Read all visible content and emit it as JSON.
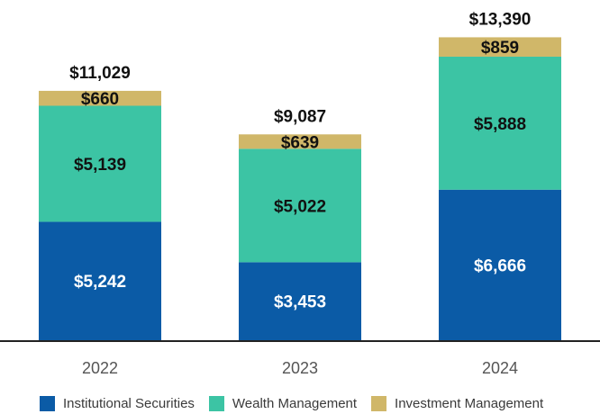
{
  "chart_data": {
    "type": "bar",
    "stacked": true,
    "title": "",
    "xlabel": "",
    "ylabel": "",
    "categories": [
      "2022",
      "2023",
      "2024"
    ],
    "series": [
      {
        "name": "Institutional Securities",
        "color": "#0b5ba6",
        "values": [
          5242,
          3453,
          6666
        ],
        "labels": [
          "$5,242",
          "$3,453",
          "$6,666"
        ],
        "label_color": "#ffffff"
      },
      {
        "name": "Wealth Management",
        "color": "#3cc4a4",
        "values": [
          5139,
          5022,
          5888
        ],
        "labels": [
          "$5,139",
          "$5,022",
          "$5,888"
        ],
        "label_color": "#111111"
      },
      {
        "name": "Investment Management",
        "color": "#d0b769",
        "values": [
          660,
          639,
          859
        ],
        "labels": [
          "$660",
          "$639",
          "$859"
        ],
        "label_color": "#111111"
      }
    ],
    "totals": [
      11029,
      9087,
      13390
    ],
    "total_labels": [
      "$11,029",
      "$9,087",
      "$13,390"
    ],
    "ylim": [
      0,
      13390
    ],
    "grid": false,
    "legend_position": "bottom"
  }
}
